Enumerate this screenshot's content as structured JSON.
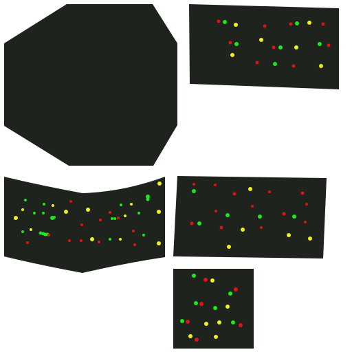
{
  "colors": {
    "background": "#ffffff",
    "panel": "#1f231e",
    "red": "#e01313",
    "green": "#1de81a",
    "yellow": "#f0f020"
  },
  "panels": [
    {
      "id": "octagon-panel",
      "shape": "octagon",
      "dot_count": 0
    },
    {
      "id": "top-right-panel",
      "shape": "quad",
      "dot_count": 22
    },
    {
      "id": "middle-left-panel",
      "shape": "wavy-band",
      "dot_count": 47
    },
    {
      "id": "middle-right-panel",
      "shape": "quad",
      "dot_count": 27
    },
    {
      "id": "bottom-panel",
      "shape": "square",
      "dot_count": 21
    }
  ]
}
